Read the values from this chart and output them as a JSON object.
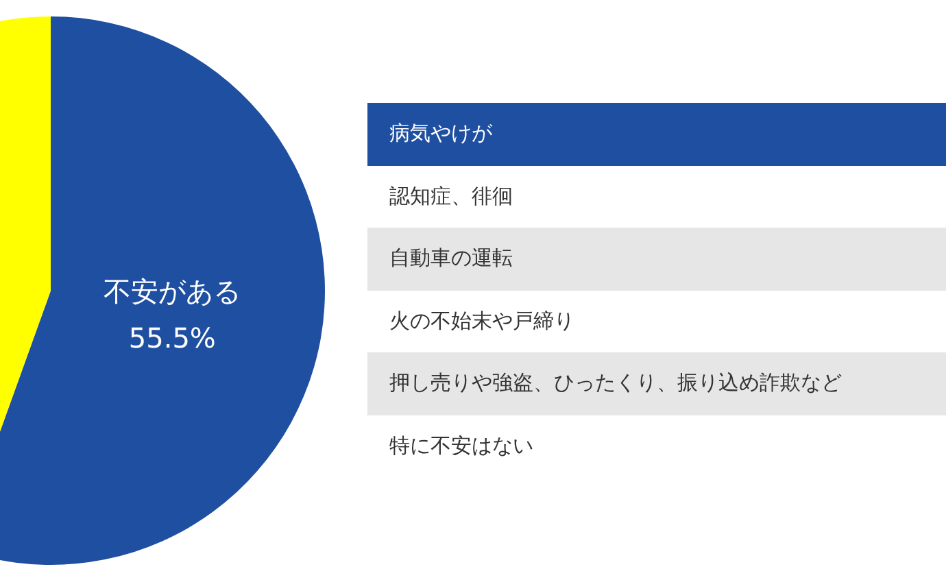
{
  "chart_data": {
    "type": "pie",
    "categories": [
      "不安がある",
      null
    ],
    "values": [
      55.5,
      44.5
    ],
    "colors": [
      "#1f4fa0",
      "#ffff00"
    ],
    "value_labels": [
      "55.5%",
      null
    ],
    "annotations": [
      "病気やけが",
      "認知症、徘徊",
      "自動車の運転",
      "火の不始末や戸締り",
      "押し売りや強盗、ひったくり、振り込め詐欺など",
      "特に不安はない"
    ]
  }
}
